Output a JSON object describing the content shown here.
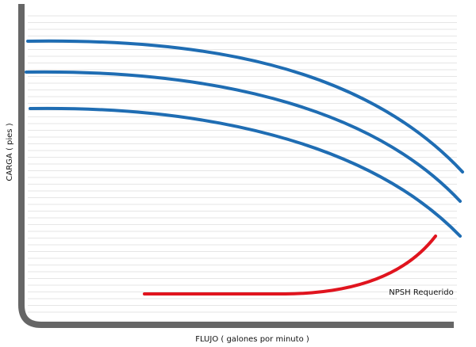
{
  "axes": {
    "x_label": "FLUJO ( galones por minuto )",
    "y_label": "CARGA ( pies )"
  },
  "annotations": [
    "NPSH Requerido"
  ]
}
